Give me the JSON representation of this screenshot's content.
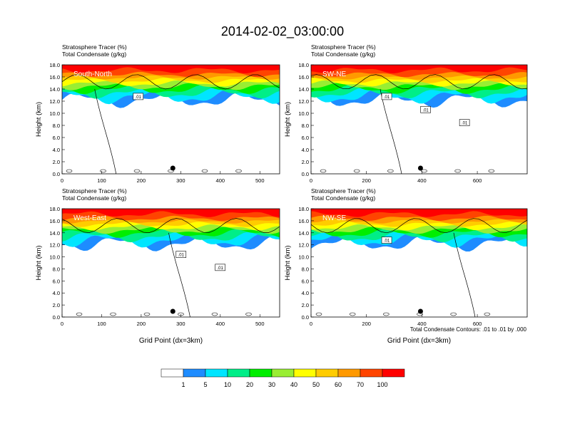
{
  "title": "2014-02-02_03:00:00",
  "panel_header": {
    "line1": "Stratosphere Tracer   (%)",
    "line2": "Total Condensate   (g/kg)"
  },
  "ylabel": "Height (km)",
  "xlabel": "Grid Point (dx=3km)",
  "contour_note": "Total Condensate Contours: .01 to .01 by .000",
  "colorbar": {
    "colors": [
      "#ffffff",
      "#1e8cff",
      "#00e5ff",
      "#00ee88",
      "#00ee00",
      "#99ee33",
      "#ffff00",
      "#ffcc00",
      "#ff9900",
      "#ff4400",
      "#ff0000"
    ],
    "labels": [
      "1",
      "5",
      "10",
      "20",
      "30",
      "40",
      "50",
      "60",
      "70",
      "100"
    ]
  },
  "chart_data": [
    {
      "type": "heatmap",
      "name": "South-North",
      "xlim": [
        0,
        550
      ],
      "ylim": [
        0,
        18
      ],
      "xticks": [
        0,
        100,
        200,
        300,
        400,
        500
      ],
      "yticks": [
        "0.0",
        "2.0",
        "4.0",
        "6.0",
        "8.0",
        "10.0",
        "12.0",
        "14.0",
        "16.0",
        "18.0"
      ],
      "contour_labels": [
        ".01"
      ],
      "marker_x": 280
    },
    {
      "type": "heatmap",
      "name": "SW-NE",
      "xlim": [
        0,
        780
      ],
      "ylim": [
        0,
        18
      ],
      "xticks": [
        0,
        200,
        400,
        600
      ],
      "yticks": [
        "0.0",
        "2.0",
        "4.0",
        "6.0",
        "8.0",
        "10.0",
        "12.0",
        "14.0",
        "16.0",
        "18.0"
      ],
      "contour_labels": [
        ".01",
        ".01",
        ".01"
      ],
      "marker_x": 395
    },
    {
      "type": "heatmap",
      "name": "West-East",
      "xlim": [
        0,
        550
      ],
      "ylim": [
        0,
        18
      ],
      "xticks": [
        0,
        100,
        200,
        300,
        400,
        500
      ],
      "yticks": [
        "0.0",
        "2.0",
        "4.0",
        "6.0",
        "8.0",
        "10.0",
        "12.0",
        "14.0",
        "16.0",
        "18.0"
      ],
      "contour_labels": [
        ".01",
        ".01"
      ],
      "marker_x": 280
    },
    {
      "type": "heatmap",
      "name": "NW-SE",
      "xlim": [
        0,
        780
      ],
      "ylim": [
        0,
        18
      ],
      "xticks": [
        0,
        200,
        400,
        600
      ],
      "yticks": [
        "0.0",
        "2.0",
        "4.0",
        "6.0",
        "8.0",
        "10.0",
        "12.0",
        "14.0",
        "16.0",
        "18.0"
      ],
      "contour_labels": [
        ".01"
      ],
      "marker_x": 395
    }
  ]
}
